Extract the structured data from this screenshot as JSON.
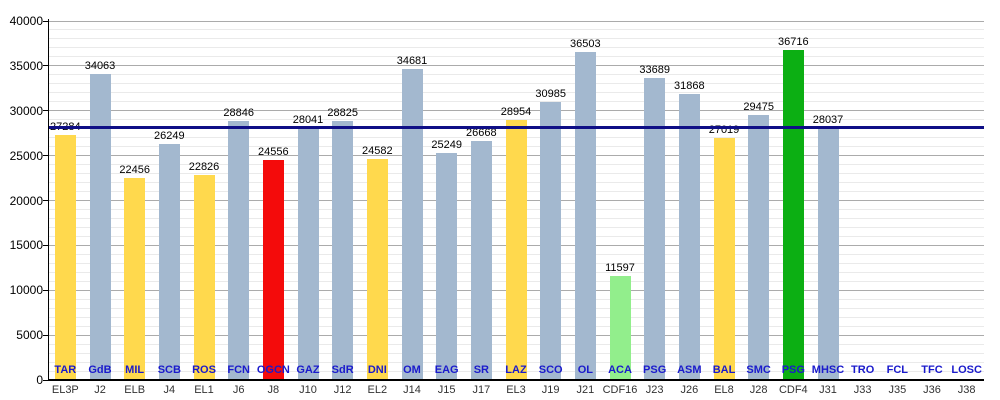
{
  "chart_data": {
    "type": "bar",
    "title": "",
    "xlabel": "",
    "ylabel": "",
    "categories": [
      "TAR",
      "GdB",
      "MIL",
      "SCB",
      "ROS",
      "FCN",
      "OGCN",
      "GAZ",
      "SdR",
      "DNI",
      "OM",
      "EAG",
      "SR",
      "LAZ",
      "SCO",
      "OL",
      "ACA",
      "PSG",
      "ASM",
      "BAL",
      "SMC",
      "PSG",
      "MHSC",
      "TRO",
      "FCL",
      "TFC",
      "LOSC"
    ],
    "rounds": [
      "EL3P",
      "J2",
      "ELB",
      "J4",
      "EL1",
      "J6",
      "J8",
      "J10",
      "J12",
      "EL2",
      "J14",
      "J15",
      "J17",
      "EL3",
      "J19",
      "J21",
      "CDF16",
      "J23",
      "J26",
      "EL8",
      "J28",
      "CDF4",
      "J31",
      "J33",
      "J35",
      "J36",
      "J38"
    ],
    "values": [
      27284,
      34063,
      22456,
      26249,
      22826,
      28846,
      24556,
      28041,
      28825,
      24582,
      34681,
      25249,
      26668,
      28954,
      30985,
      36503,
      11597,
      33689,
      31868,
      27019,
      29475,
      36716,
      28037,
      null,
      null,
      null,
      null
    ],
    "bar_colors": [
      "yellow",
      "gray",
      "yellow",
      "gray",
      "yellow",
      "gray",
      "red",
      "gray",
      "gray",
      "yellow",
      "gray",
      "gray",
      "gray",
      "yellow",
      "gray",
      "gray",
      "lightgreen",
      "gray",
      "gray",
      "yellow",
      "gray",
      "green",
      "gray",
      null,
      null,
      null,
      null
    ],
    "palette": {
      "gray": "#A3B8CF",
      "yellow": "#FFD94D",
      "red": "#F40B0B",
      "lightgreen": "#92EE8C",
      "green": "#0CAF13"
    },
    "average_line": {
      "value": 28226,
      "color": "#0F0F86"
    },
    "y_axis": {
      "min": 0,
      "max": 40000,
      "major_step": 5000,
      "minor_step": 1000,
      "tick_labels": [
        "0",
        "5000",
        "10000",
        "15000",
        "20000",
        "25000",
        "30000",
        "35000",
        "40000"
      ]
    },
    "grid": {
      "on": true,
      "major_color": "#ABABAB",
      "minor_color": "#EAEAEA"
    },
    "label_colors": {
      "opponent": "#1A1ACC",
      "round": "#333333",
      "value": "#000000"
    },
    "legend": null
  }
}
